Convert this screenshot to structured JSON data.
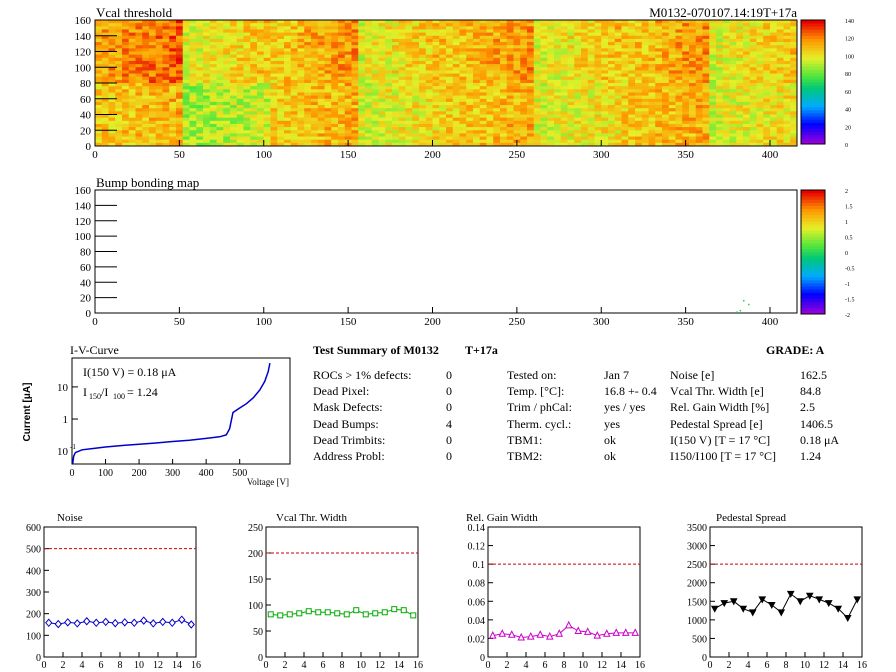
{
  "header": {
    "vcal_title": "Vcal threshold",
    "module_id": "M0132-070107.14:19T+17a",
    "bump_title": "Bump bonding map"
  },
  "vcal_map": {
    "x_ticks": [
      "0",
      "50",
      "100",
      "150",
      "200",
      "250",
      "300",
      "350",
      "400"
    ],
    "y_ticks": [
      "0",
      "20",
      "40",
      "60",
      "80",
      "100",
      "120",
      "140",
      "160"
    ],
    "palette_ticks": [
      "0",
      "20",
      "40",
      "60",
      "80",
      "100",
      "120",
      "140"
    ]
  },
  "bump_map": {
    "x_ticks": [
      "0",
      "50",
      "100",
      "150",
      "200",
      "250",
      "300",
      "350",
      "400"
    ],
    "y_ticks": [
      "0",
      "20",
      "40",
      "60",
      "80",
      "100",
      "120",
      "140",
      "160"
    ],
    "palette_ticks": [
      "-2",
      "-1.5",
      "-1",
      "-0.5",
      "0",
      "0.5",
      "1",
      "1.5",
      "2"
    ]
  },
  "iv": {
    "title": "I-V-Curve",
    "i150": "I(150 V) = 0.18 μA",
    "ratio_label": "I",
    "ratio_sub1": "150",
    "ratio_slash": "/I",
    "ratio_sub2": "100",
    "ratio_value": "=  1.24",
    "ylabel": "Current [μA]",
    "xlabel": "Voltage [V]",
    "x_ticks": [
      "0",
      "100",
      "200",
      "300",
      "400",
      "500"
    ],
    "y_ticks": [
      "10",
      "1"
    ]
  },
  "summary": {
    "title": "Test Summary of M0132",
    "temp_tag": "T+17a",
    "grade_label": "GRADE:  A",
    "col1": [
      {
        "label": "ROCs > 1% defects:",
        "value": "0"
      },
      {
        "label": "Dead Pixel:",
        "value": "0"
      },
      {
        "label": "Mask Defects:",
        "value": "0"
      },
      {
        "label": "Dead Bumps:",
        "value": "4"
      },
      {
        "label": "Dead Trimbits:",
        "value": "0"
      },
      {
        "label": "Address Probl:",
        "value": "0"
      }
    ],
    "col2": [
      {
        "label": "Tested on:",
        "value": "Jan 7"
      },
      {
        "label": "Temp. [°C]:",
        "value": "16.8 +- 0.4"
      },
      {
        "label": "Trim / phCal:",
        "value": "yes / yes"
      },
      {
        "label": "Therm. cycl.:",
        "value": "yes"
      },
      {
        "label": "TBM1:",
        "value": "ok"
      },
      {
        "label": "TBM2:",
        "value": "ok"
      }
    ],
    "col3": [
      {
        "label": "Noise [e]",
        "value": "162.5"
      },
      {
        "label": "Vcal Thr. Width [e]",
        "value": "84.8"
      },
      {
        "label": "Rel. Gain Width [%]",
        "value": "2.5"
      },
      {
        "label": "Pedestal Spread [e]",
        "value": "1406.5"
      },
      {
        "label": "I(150 V) [T = 17 °C]",
        "value": "0.18 μA"
      },
      {
        "label": "I150/I100  [T = 17 °C]",
        "value": "1.24"
      }
    ]
  },
  "chart_data": [
    {
      "type": "line",
      "title": "Noise",
      "x": [
        0,
        1,
        2,
        3,
        4,
        5,
        6,
        7,
        8,
        9,
        10,
        11,
        12,
        13,
        14,
        15
      ],
      "values": [
        158,
        152,
        160,
        155,
        165,
        158,
        162,
        156,
        160,
        158,
        168,
        155,
        162,
        158,
        172,
        150
      ],
      "xlim": [
        0,
        16
      ],
      "ylim": [
        0,
        600
      ],
      "y_ticks": [
        "0",
        "100",
        "200",
        "300",
        "400",
        "500",
        "600"
      ],
      "x_ticks": [
        "0",
        "2",
        "4",
        "6",
        "8",
        "10",
        "12",
        "14",
        "16"
      ],
      "threshold": 500,
      "color": "#0000cc",
      "marker": "diamond"
    },
    {
      "type": "line",
      "title": "Vcal Thr. Width",
      "x": [
        0,
        1,
        2,
        3,
        4,
        5,
        6,
        7,
        8,
        9,
        10,
        11,
        12,
        13,
        14,
        15
      ],
      "values": [
        82,
        80,
        82,
        84,
        88,
        86,
        86,
        84,
        82,
        90,
        82,
        84,
        86,
        92,
        90,
        80
      ],
      "xlim": [
        0,
        16
      ],
      "ylim": [
        0,
        250
      ],
      "y_ticks": [
        "0",
        "50",
        "100",
        "150",
        "200",
        "250"
      ],
      "x_ticks": [
        "0",
        "2",
        "4",
        "6",
        "8",
        "10",
        "12",
        "14",
        "16"
      ],
      "threshold": 200,
      "color": "#00aa00",
      "marker": "square"
    },
    {
      "type": "line",
      "title": "Rel. Gain Width",
      "x": [
        0,
        1,
        2,
        3,
        4,
        5,
        6,
        7,
        8,
        9,
        10,
        11,
        12,
        13,
        14,
        15
      ],
      "values": [
        0.023,
        0.025,
        0.024,
        0.021,
        0.022,
        0.024,
        0.022,
        0.025,
        0.034,
        0.028,
        0.027,
        0.023,
        0.025,
        0.026,
        0.026,
        0.026
      ],
      "xlim": [
        0,
        16
      ],
      "ylim": [
        0,
        0.14
      ],
      "y_ticks": [
        "0",
        "0.02",
        "0.04",
        "0.06",
        "0.08",
        "0.1",
        "0.12",
        "0.14"
      ],
      "x_ticks": [
        "0",
        "2",
        "4",
        "6",
        "8",
        "10",
        "12",
        "14",
        "16"
      ],
      "threshold": 0.1,
      "color": "#cc00cc",
      "marker": "triangle-up"
    },
    {
      "type": "line",
      "title": "Pedestal Spread",
      "x": [
        0,
        1,
        2,
        3,
        4,
        5,
        6,
        7,
        8,
        9,
        10,
        11,
        12,
        13,
        14,
        15
      ],
      "values": [
        1300,
        1450,
        1500,
        1300,
        1200,
        1550,
        1400,
        1200,
        1700,
        1500,
        1650,
        1550,
        1450,
        1300,
        1050,
        1550
      ],
      "xlim": [
        0,
        16
      ],
      "ylim": [
        0,
        3500
      ],
      "y_ticks": [
        "0",
        "500",
        "1000",
        "1500",
        "2000",
        "2500",
        "3000",
        "3500"
      ],
      "x_ticks": [
        "0",
        "2",
        "4",
        "6",
        "8",
        "10",
        "12",
        "14",
        "16"
      ],
      "threshold": 2500,
      "color": "#000000",
      "marker": "triangle-down"
    }
  ],
  "colors": {
    "threshold_line": "#cc0000",
    "iv_curve": "#0000cc"
  }
}
